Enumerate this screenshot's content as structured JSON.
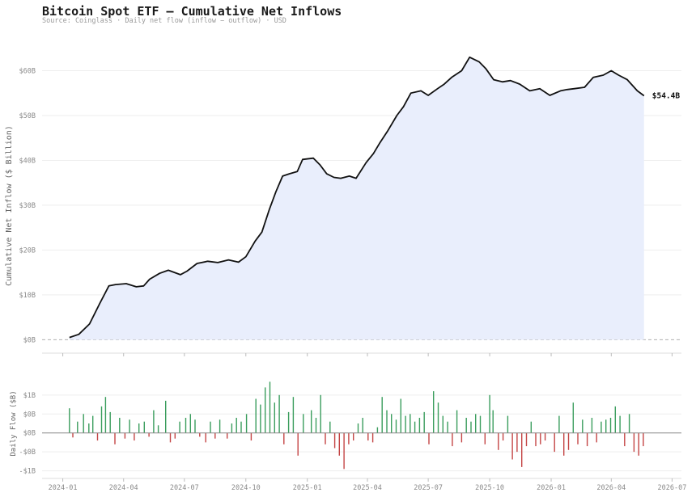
{
  "title": "Bitcoin Spot ETF — Cumulative Net Inflows",
  "subtitle": "Source: Coinglass  ·  Daily net flow (inflow − outflow)  ·  USD",
  "colors": {
    "line": "#111111",
    "fill": "#e9eefc",
    "inflow": "#3a9d5d",
    "outflow": "#c44545",
    "grid": "#eeeeee",
    "zero": "#b0b0b0"
  },
  "chart_data": [
    {
      "type": "area",
      "ylabel": "Cumulative Net Inflow ($ Billion)",
      "ylim": [
        -3,
        70
      ],
      "yticks": [
        0,
        10,
        20,
        30,
        40,
        50,
        60
      ],
      "ytick_labels": [
        "$0B",
        "$10B",
        "$20B",
        "$30B",
        "$40B",
        "$50B",
        "$60B"
      ],
      "end_label": "$54.4B",
      "series": [
        {
          "x": [
            "2024-01-11",
            "2024-01-25",
            "2024-02-10",
            "2024-02-25",
            "2024-03-10",
            "2024-03-20",
            "2024-04-05",
            "2024-04-20",
            "2024-05-01",
            "2024-05-10",
            "2024-05-25",
            "2024-06-07",
            "2024-06-25",
            "2024-07-05",
            "2024-07-20",
            "2024-08-05",
            "2024-08-20",
            "2024-09-05",
            "2024-09-20",
            "2024-10-01",
            "2024-10-15",
            "2024-10-25",
            "2024-11-05",
            "2024-11-15",
            "2024-11-25",
            "2024-12-05",
            "2024-12-17",
            "2024-12-25",
            "2025-01-10",
            "2025-01-20",
            "2025-01-30",
            "2025-02-10",
            "2025-02-20",
            "2025-03-05",
            "2025-03-15",
            "2025-03-30",
            "2025-04-10",
            "2025-04-20",
            "2025-05-01",
            "2025-05-15",
            "2025-05-25",
            "2025-06-05",
            "2025-06-20",
            "2025-07-01",
            "2025-07-15",
            "2025-07-25",
            "2025-08-05",
            "2025-08-20",
            "2025-09-01",
            "2025-09-15",
            "2025-09-25",
            "2025-10-07",
            "2025-10-20",
            "2025-11-01",
            "2025-11-15",
            "2025-11-30",
            "2025-12-15",
            "2025-12-30",
            "2026-01-15",
            "2026-01-25",
            "2026-02-05",
            "2026-02-20",
            "2026-03-05",
            "2026-03-20",
            "2026-04-01",
            "2026-04-12",
            "2026-04-25",
            "2026-05-10",
            "2026-05-20"
          ],
          "y": [
            0.5,
            1.2,
            3.5,
            8.0,
            12.0,
            12.3,
            12.5,
            11.8,
            12.0,
            13.5,
            14.8,
            15.5,
            14.5,
            15.3,
            17.0,
            17.5,
            17.2,
            17.8,
            17.3,
            18.5,
            22.0,
            24.0,
            29.0,
            33.0,
            36.5,
            37.0,
            37.5,
            40.2,
            40.5,
            39.0,
            37.0,
            36.2,
            36.0,
            36.5,
            36.0,
            39.5,
            41.5,
            44.0,
            46.5,
            50.0,
            52.0,
            55.0,
            55.5,
            54.5,
            56.0,
            57.0,
            58.5,
            60.0,
            63.0,
            62.0,
            60.5,
            58.0,
            57.5,
            57.8,
            57.0,
            55.5,
            56.0,
            54.5,
            55.5,
            55.8,
            56.0,
            56.3,
            58.5,
            59.0,
            60.0,
            59.0,
            58.0,
            55.5,
            54.4
          ]
        }
      ]
    },
    {
      "type": "bar",
      "ylabel": "Daily Flow ($B)",
      "ylim": [
        -1.2,
        1.7
      ],
      "yticks": [
        -1,
        -0.5,
        0,
        0.5,
        1
      ],
      "ytick_labels": [
        "-$1B",
        "-$0B",
        "$0B",
        "$0B",
        "$1B"
      ],
      "xticks": [
        "2024-01-01",
        "2024-04-01",
        "2024-07-01",
        "2024-10-01",
        "2025-01-01",
        "2025-04-01",
        "2025-07-01",
        "2025-10-01",
        "2026-01-01",
        "2026-04-01",
        "2026-07-01"
      ],
      "xtick_labels": [
        "2024-01",
        "2024-04",
        "2024-07",
        "2024-10",
        "2025-01",
        "2025-04",
        "2025-07",
        "2025-10",
        "2026-01",
        "2026-04",
        "2026-07"
      ],
      "series": [
        {
          "name": "daily net flow",
          "x": [
            "2024-01-11",
            "2024-01-16",
            "2024-01-23",
            "2024-02-01",
            "2024-02-09",
            "2024-02-15",
            "2024-02-22",
            "2024-02-28",
            "2024-03-05",
            "2024-03-12",
            "2024-03-19",
            "2024-03-26",
            "2024-04-03",
            "2024-04-10",
            "2024-04-17",
            "2024-04-24",
            "2024-05-02",
            "2024-05-09",
            "2024-05-16",
            "2024-05-23",
            "2024-06-03",
            "2024-06-10",
            "2024-06-17",
            "2024-06-24",
            "2024-07-03",
            "2024-07-10",
            "2024-07-17",
            "2024-07-24",
            "2024-08-02",
            "2024-08-09",
            "2024-08-16",
            "2024-08-23",
            "2024-09-03",
            "2024-09-10",
            "2024-09-17",
            "2024-09-24",
            "2024-10-02",
            "2024-10-09",
            "2024-10-16",
            "2024-10-23",
            "2024-10-30",
            "2024-11-06",
            "2024-11-13",
            "2024-11-20",
            "2024-11-27",
            "2024-12-04",
            "2024-12-11",
            "2024-12-18",
            "2024-12-26",
            "2025-01-07",
            "2025-01-14",
            "2025-01-21",
            "2025-01-28",
            "2025-02-04",
            "2025-02-11",
            "2025-02-18",
            "2025-02-25",
            "2025-03-04",
            "2025-03-11",
            "2025-03-18",
            "2025-03-25",
            "2025-04-02",
            "2025-04-09",
            "2025-04-16",
            "2025-04-23",
            "2025-04-30",
            "2025-05-07",
            "2025-05-14",
            "2025-05-21",
            "2025-05-28",
            "2025-06-04",
            "2025-06-11",
            "2025-06-18",
            "2025-06-25",
            "2025-07-02",
            "2025-07-09",
            "2025-07-16",
            "2025-07-23",
            "2025-07-30",
            "2025-08-06",
            "2025-08-13",
            "2025-08-20",
            "2025-08-27",
            "2025-09-03",
            "2025-09-10",
            "2025-09-17",
            "2025-09-24",
            "2025-10-01",
            "2025-10-06",
            "2025-10-14",
            "2025-10-21",
            "2025-10-28",
            "2025-11-04",
            "2025-11-11",
            "2025-11-18",
            "2025-11-25",
            "2025-12-02",
            "2025-12-09",
            "2025-12-16",
            "2025-12-23",
            "2026-01-06",
            "2026-01-13",
            "2026-01-20",
            "2026-01-27",
            "2026-02-03",
            "2026-02-10",
            "2026-02-17",
            "2026-02-24",
            "2026-03-03",
            "2026-03-10",
            "2026-03-17",
            "2026-03-24",
            "2026-03-31",
            "2026-04-07",
            "2026-04-14",
            "2026-04-21",
            "2026-04-28",
            "2026-05-05",
            "2026-05-12",
            "2026-05-19"
          ],
          "values": [
            0.65,
            -0.12,
            0.3,
            0.5,
            0.25,
            0.45,
            -0.2,
            0.7,
            0.95,
            0.55,
            -0.3,
            0.4,
            -0.15,
            0.35,
            -0.2,
            0.25,
            0.3,
            -0.1,
            0.6,
            0.2,
            0.85,
            -0.25,
            -0.15,
            0.3,
            0.4,
            0.5,
            0.35,
            -0.1,
            -0.25,
            0.3,
            -0.15,
            0.35,
            -0.15,
            0.25,
            0.4,
            0.3,
            0.5,
            -0.2,
            0.9,
            0.75,
            1.2,
            1.35,
            0.8,
            1.0,
            -0.3,
            0.55,
            0.95,
            -0.6,
            0.5,
            0.6,
            0.4,
            1.0,
            -0.3,
            0.3,
            -0.4,
            -0.6,
            -0.95,
            -0.3,
            -0.2,
            0.25,
            0.4,
            -0.2,
            -0.25,
            0.15,
            0.95,
            0.6,
            0.5,
            0.35,
            0.9,
            0.45,
            0.5,
            0.3,
            0.4,
            0.55,
            -0.3,
            1.1,
            0.8,
            0.45,
            0.3,
            -0.35,
            0.6,
            -0.25,
            0.4,
            0.3,
            0.5,
            0.45,
            -0.3,
            1.0,
            0.6,
            -0.45,
            -0.2,
            0.45,
            -0.7,
            -0.5,
            -0.9,
            -0.35,
            0.3,
            -0.35,
            -0.3,
            -0.2,
            -0.5,
            0.45,
            -0.6,
            -0.45,
            0.8,
            -0.3,
            0.35,
            -0.35,
            0.4,
            -0.25,
            0.3,
            0.35,
            0.4,
            0.7,
            0.45,
            -0.35,
            0.5,
            -0.5,
            -0.6,
            -0.35
          ]
        }
      ]
    }
  ]
}
